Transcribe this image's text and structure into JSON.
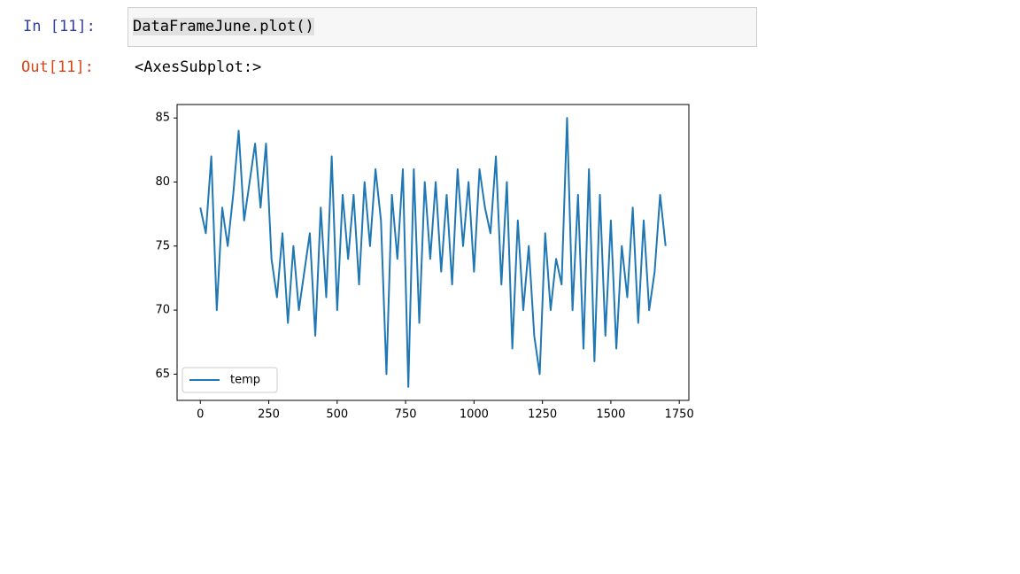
{
  "cell": {
    "in_prompt": "In [11]:",
    "code": "DataFrameJune.plot()",
    "out_prompt": "Out[11]:",
    "output": "<AxesSubplot:>"
  },
  "chart_data": {
    "type": "line",
    "x": [
      0,
      20,
      40,
      60,
      80,
      100,
      120,
      140,
      160,
      180,
      200,
      220,
      240,
      260,
      280,
      300,
      320,
      340,
      360,
      380,
      400,
      420,
      440,
      460,
      480,
      500,
      520,
      540,
      560,
      580,
      600,
      620,
      640,
      660,
      680,
      700,
      720,
      740,
      760,
      780,
      800,
      820,
      840,
      860,
      880,
      900,
      920,
      940,
      960,
      980,
      1000,
      1020,
      1040,
      1060,
      1080,
      1100,
      1120,
      1140,
      1160,
      1180,
      1200,
      1220,
      1240,
      1260,
      1280,
      1300,
      1320,
      1340,
      1360,
      1380,
      1400,
      1420,
      1440,
      1460,
      1480,
      1500,
      1520,
      1540,
      1560,
      1580,
      1600,
      1620,
      1640,
      1660,
      1680,
      1700
    ],
    "series": [
      {
        "name": "temp",
        "color": "#1f77b4",
        "values": [
          78,
          76,
          82,
          70,
          78,
          75,
          79,
          84,
          77,
          80,
          83,
          78,
          83,
          74,
          71,
          76,
          69,
          75,
          70,
          73,
          76,
          68,
          78,
          71,
          82,
          70,
          79,
          74,
          79,
          72,
          80,
          75,
          81,
          77,
          65,
          79,
          74,
          81,
          64,
          81,
          69,
          80,
          74,
          80,
          73,
          79,
          72,
          81,
          75,
          80,
          73,
          81,
          78,
          76,
          82,
          72,
          80,
          67,
          77,
          70,
          75,
          68,
          65,
          76,
          70,
          74,
          72,
          85,
          70,
          79,
          67,
          81,
          66,
          79,
          68,
          77,
          67,
          75,
          71,
          78,
          69,
          77,
          70,
          73,
          79,
          75
        ]
      }
    ],
    "xlim": [
      -85,
      1785
    ],
    "ylim": [
      62.95,
      86.05
    ],
    "xticks": [
      0,
      250,
      500,
      750,
      1000,
      1250,
      1500,
      1750
    ],
    "yticks": [
      65,
      70,
      75,
      80,
      85
    ],
    "legend": "lower left"
  }
}
